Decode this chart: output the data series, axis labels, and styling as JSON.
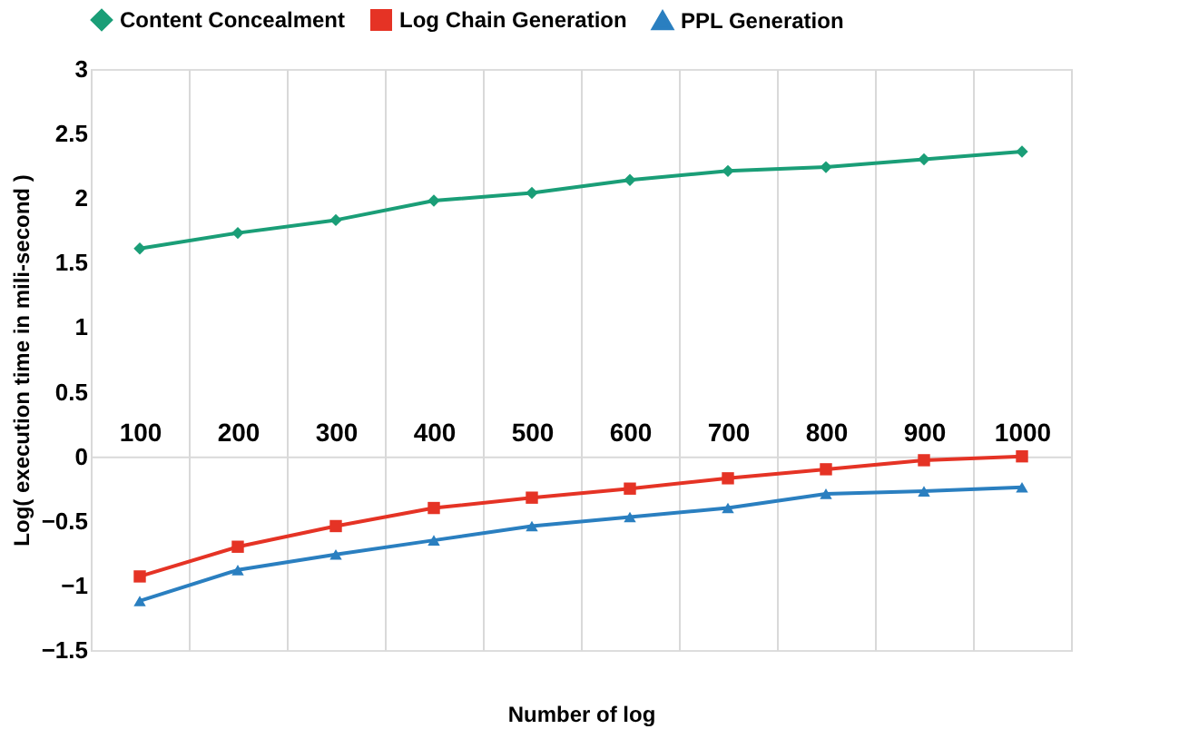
{
  "chart_data": {
    "type": "line",
    "xlabel": "Number of log",
    "ylabel": "Log( execution time in mili-second )",
    "categories": [
      "100",
      "200",
      "300",
      "400",
      "500",
      "600",
      "700",
      "800",
      "900",
      "1000"
    ],
    "ylim": [
      -1.5,
      3
    ],
    "yticks": [
      -1.5,
      -1,
      -0.5,
      0,
      0.5,
      1,
      1.5,
      2,
      2.5,
      3
    ],
    "grid": "x",
    "legend": "top",
    "line_style": "solid",
    "series": [
      {
        "name": "Content Concealment",
        "color": "#1a9e77",
        "marker": "diamond",
        "values": [
          1.61,
          1.73,
          1.83,
          1.98,
          2.04,
          2.14,
          2.21,
          2.24,
          2.3,
          2.36
        ]
      },
      {
        "name": "Log Chain Generation",
        "color": "#e53325",
        "marker": "square",
        "values": [
          -0.93,
          -0.7,
          -0.54,
          -0.4,
          -0.32,
          -0.25,
          -0.17,
          -0.1,
          -0.03,
          0
        ]
      },
      {
        "name": "PPL Generation",
        "color": "#2a7fc0",
        "marker": "triangle",
        "values": [
          -1.12,
          -0.88,
          -0.76,
          -0.65,
          -0.54,
          -0.47,
          -0.4,
          -0.29,
          -0.27,
          -0.24
        ]
      }
    ]
  }
}
